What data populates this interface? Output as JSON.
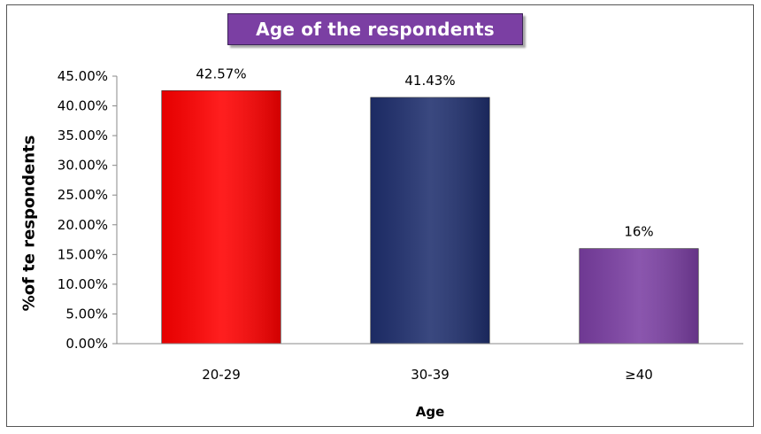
{
  "chart_data": {
    "type": "bar",
    "title": "Age of the respondents",
    "xlabel": "Age",
    "ylabel": "%of te respondents",
    "categories": [
      "20-29",
      "30-39",
      "≥40"
    ],
    "values": [
      42.57,
      41.43,
      16
    ],
    "data_labels": [
      "42.57%",
      "41.43%",
      "16%"
    ],
    "colors": [
      "#ff0000",
      "#1f2f6e",
      "#7b3fa3"
    ],
    "ylim": [
      0,
      45
    ],
    "y_ticks": [
      0,
      5,
      10,
      15,
      20,
      25,
      30,
      35,
      40,
      45
    ],
    "y_tick_labels": [
      "0.00%",
      "5.00%",
      "10.00%",
      "15.00%",
      "20.00%",
      "25.00%",
      "30.00%",
      "35.00%",
      "40.00%",
      "45.00%"
    ],
    "grid": false,
    "legend": "none"
  }
}
